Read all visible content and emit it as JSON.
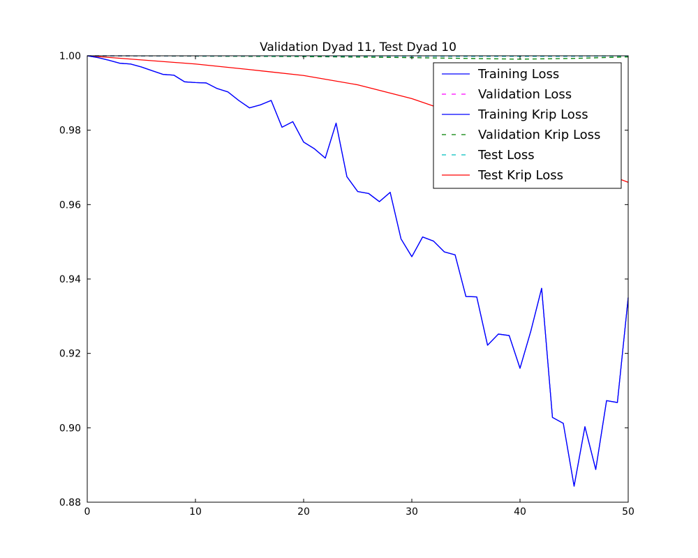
{
  "chart_data": {
    "type": "line",
    "title": "Validation Dyad 11, Test Dyad 10",
    "xlabel": "",
    "ylabel": "",
    "xlim": [
      0,
      50
    ],
    "ylim": [
      0.88,
      1.0
    ],
    "x_ticks": [
      0,
      10,
      20,
      30,
      40,
      50
    ],
    "x_tick_labels": [
      "0",
      "10",
      "20",
      "30",
      "40",
      "50"
    ],
    "y_ticks": [
      0.88,
      0.9,
      0.92,
      0.94,
      0.96,
      0.98,
      1.0
    ],
    "y_tick_labels": [
      "0.88",
      "0.90",
      "0.92",
      "0.94",
      "0.96",
      "0.98",
      "1.00"
    ],
    "grid": false,
    "legend_position": "top-right",
    "series": [
      {
        "name": "Training Loss",
        "color": "#0000ff",
        "dash": "solid",
        "x": [
          0,
          1,
          2,
          3,
          4,
          5,
          6,
          7,
          8,
          9,
          10,
          11,
          12,
          13,
          14,
          15,
          16,
          17,
          18,
          19,
          20,
          21,
          22,
          23,
          24,
          25,
          26,
          27,
          28,
          29,
          30,
          31,
          32,
          33,
          34,
          35,
          36,
          37,
          38,
          39,
          40,
          41,
          42,
          43,
          44,
          45,
          46,
          47,
          48,
          49,
          50
        ],
        "y": [
          1.0,
          0.9995,
          0.9988,
          0.998,
          0.9978,
          0.997,
          0.996,
          0.995,
          0.9948,
          0.993,
          0.9928,
          0.9927,
          0.9912,
          0.9903,
          0.988,
          0.986,
          0.9868,
          0.988,
          0.9808,
          0.9823,
          0.9768,
          0.975,
          0.9725,
          0.9819,
          0.9675,
          0.9635,
          0.963,
          0.9608,
          0.9633,
          0.9508,
          0.946,
          0.9513,
          0.9502,
          0.9473,
          0.9465,
          0.9353,
          0.9352,
          0.9222,
          0.9252,
          0.9248,
          0.916,
          0.926,
          0.9375,
          0.9028,
          0.9012,
          0.8843,
          0.9003,
          0.8888,
          0.9073,
          0.9068,
          0.935
        ]
      },
      {
        "name": "Validation Loss",
        "color": "#ff00ff",
        "dash": "dashed",
        "x": [
          0,
          5,
          10,
          15,
          20,
          25,
          30,
          35,
          40,
          45,
          50
        ],
        "y": [
          1.0,
          0.99998,
          0.99997,
          0.99995,
          0.99993,
          0.99991,
          0.99989,
          0.99987,
          0.99985,
          0.99988,
          0.99995
        ]
      },
      {
        "name": "Training Krip Loss",
        "color": "#0000ff",
        "dash": "solid",
        "x": [
          0,
          1,
          2,
          3,
          4,
          5,
          6,
          7,
          8,
          9,
          10,
          11,
          12,
          13,
          14,
          15,
          16,
          17,
          18,
          19,
          20,
          21,
          22,
          23,
          24,
          25,
          26,
          27,
          28,
          29,
          30,
          31,
          32,
          33,
          34,
          35,
          36,
          37,
          38,
          39,
          40,
          41,
          42,
          43,
          44,
          45,
          46,
          47,
          48,
          49,
          50
        ],
        "y": [
          1.0,
          0.9995,
          0.9988,
          0.998,
          0.9978,
          0.997,
          0.996,
          0.995,
          0.9948,
          0.993,
          0.9928,
          0.9927,
          0.9912,
          0.9903,
          0.988,
          0.986,
          0.9868,
          0.988,
          0.9808,
          0.9823,
          0.9768,
          0.975,
          0.9725,
          0.9819,
          0.9675,
          0.9635,
          0.963,
          0.9608,
          0.9633,
          0.9508,
          0.946,
          0.9513,
          0.9502,
          0.9473,
          0.9465,
          0.9353,
          0.9352,
          0.9222,
          0.9252,
          0.9248,
          0.916,
          0.926,
          0.9375,
          0.9028,
          0.9012,
          0.8843,
          0.9003,
          0.8888,
          0.9073,
          0.9068,
          0.935
        ]
      },
      {
        "name": "Validation Krip Loss",
        "color": "#008000",
        "dash": "dashed",
        "x": [
          0,
          5,
          10,
          15,
          20,
          25,
          30,
          35,
          40,
          45,
          50
        ],
        "y": [
          1.0,
          0.99995,
          0.9999,
          0.99985,
          0.9998,
          0.99965,
          0.9995,
          0.9993,
          0.9991,
          0.9993,
          0.9997
        ]
      },
      {
        "name": "Test Loss",
        "color": "#00bfbf",
        "dash": "dashed",
        "x": [
          0,
          5,
          10,
          15,
          20,
          25,
          30,
          35,
          40,
          45,
          50
        ],
        "y": [
          1.0,
          0.99998,
          0.99997,
          0.99995,
          0.99993,
          0.99991,
          0.99989,
          0.99987,
          0.99985,
          0.99988,
          0.99995
        ]
      },
      {
        "name": "Test Krip Loss",
        "color": "#ff0000",
        "dash": "solid",
        "x": [
          0,
          5,
          10,
          15,
          20,
          25,
          30,
          35,
          40,
          45,
          50
        ],
        "y": [
          1.0,
          0.9989,
          0.9978,
          0.9963,
          0.9947,
          0.9922,
          0.9885,
          0.9835,
          0.9775,
          0.9715,
          0.966
        ]
      }
    ]
  }
}
